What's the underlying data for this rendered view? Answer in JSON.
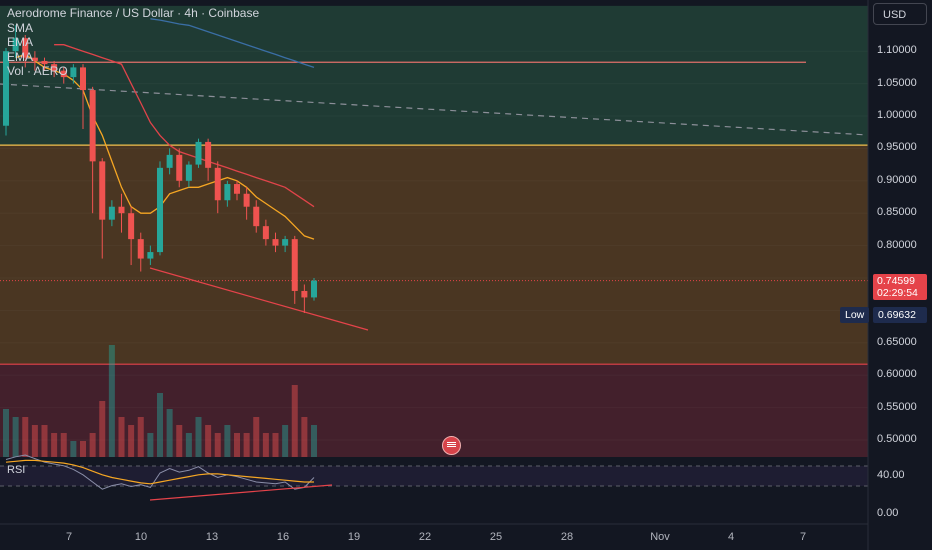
{
  "chart_title": "Aerodrome Finance / US Dollar · 4h · Coinbase",
  "indicators": [
    "SMA",
    "EMA",
    "EMA",
    "Vol · AERO"
  ],
  "rsi_label": "RSI",
  "currency_button": "USD",
  "last_price": "0.74599",
  "countdown": "02:29:54",
  "low_label": "Low",
  "low_value": "0.69632",
  "colors": {
    "up": "#26a69a",
    "down": "#ef5350",
    "supply_zone": "#1f3b34",
    "mid_zone": "#4a3622",
    "demand_zone": "#43202c",
    "sma": "#f5a623",
    "ema_red": "#e0444a",
    "ema_blue": "#3a6ea5",
    "rsi_line": "#8a8ea8",
    "rsi_ma": "#f5a623"
  },
  "chart_data": {
    "type": "candlestick",
    "y_ticks": [
      "1.10000",
      "1.05000",
      "1.00000",
      "0.95000",
      "0.90000",
      "0.85000",
      "0.80000",
      "0.65000",
      "0.60000",
      "0.55000",
      "0.50000"
    ],
    "x_ticks": [
      "7",
      "10",
      "13",
      "16",
      "19",
      "22",
      "25",
      "28",
      "Nov",
      "4",
      "7"
    ],
    "rsi_ticks": [
      "40.00",
      "0.00"
    ],
    "ylim": [
      0.46,
      1.17
    ],
    "horizontal_levels": [
      {
        "value": 1.083,
        "color": "#e0706a"
      },
      {
        "value": 0.955,
        "color": "#f2c14e"
      },
      {
        "value": 0.617,
        "color": "#e5434a"
      }
    ],
    "zones": [
      {
        "from": 0.955,
        "to": 1.17,
        "name": "supply"
      },
      {
        "from": 0.617,
        "to": 0.955,
        "name": "mid"
      },
      {
        "from": 0.46,
        "to": 0.617,
        "name": "demand"
      }
    ],
    "candles": [
      [
        0.985,
        1.1,
        1.105,
        0.97
      ],
      [
        1.1,
        1.12,
        1.14,
        1.09
      ],
      [
        1.12,
        1.09,
        1.125,
        1.075
      ],
      [
        1.09,
        1.085,
        1.1,
        1.07
      ],
      [
        1.085,
        1.08,
        1.09,
        1.07
      ],
      [
        1.08,
        1.07,
        1.085,
        1.06
      ],
      [
        1.07,
        1.06,
        1.075,
        1.05
      ],
      [
        1.06,
        1.075,
        1.08,
        1.05
      ],
      [
        1.075,
        1.04,
        1.08,
        0.98
      ],
      [
        1.04,
        0.93,
        1.045,
        0.85
      ],
      [
        0.93,
        0.84,
        0.935,
        0.78
      ],
      [
        0.84,
        0.86,
        0.87,
        0.83
      ],
      [
        0.86,
        0.85,
        0.88,
        0.82
      ],
      [
        0.85,
        0.81,
        0.86,
        0.77
      ],
      [
        0.81,
        0.78,
        0.82,
        0.76
      ],
      [
        0.78,
        0.79,
        0.8,
        0.77
      ],
      [
        0.79,
        0.92,
        0.93,
        0.785
      ],
      [
        0.92,
        0.94,
        0.95,
        0.91
      ],
      [
        0.94,
        0.9,
        0.95,
        0.89
      ],
      [
        0.9,
        0.925,
        0.93,
        0.89
      ],
      [
        0.925,
        0.96,
        0.965,
        0.92
      ],
      [
        0.96,
        0.92,
        0.965,
        0.9
      ],
      [
        0.92,
        0.87,
        0.93,
        0.85
      ],
      [
        0.87,
        0.895,
        0.9,
        0.86
      ],
      [
        0.895,
        0.88,
        0.9,
        0.87
      ],
      [
        0.88,
        0.86,
        0.89,
        0.84
      ],
      [
        0.86,
        0.83,
        0.87,
        0.82
      ],
      [
        0.83,
        0.81,
        0.84,
        0.8
      ],
      [
        0.81,
        0.8,
        0.82,
        0.79
      ],
      [
        0.8,
        0.81,
        0.815,
        0.79
      ],
      [
        0.81,
        0.73,
        0.815,
        0.71
      ],
      [
        0.73,
        0.72,
        0.74,
        0.696
      ],
      [
        0.72,
        0.746,
        0.75,
        0.715
      ]
    ],
    "volumes": [
      6,
      5,
      5,
      4,
      4,
      3,
      3,
      2,
      2,
      3,
      7,
      14,
      5,
      4,
      5,
      3,
      8,
      6,
      4,
      3,
      5,
      4,
      3,
      4,
      3,
      3,
      5,
      3,
      3,
      4,
      9,
      5,
      4
    ],
    "sma": [
      1.09,
      1.095,
      1.085,
      1.075,
      1.07,
      1.065,
      1.055,
      1.04,
      1.0,
      0.97,
      0.93,
      0.89,
      0.86,
      0.85,
      0.85,
      0.86,
      0.88,
      0.885,
      0.89,
      0.89,
      0.895,
      0.9,
      0.905,
      0.9,
      0.89,
      0.875,
      0.865,
      0.855,
      0.845,
      0.83,
      0.815,
      0.81
    ],
    "ema_red": [
      1.11,
      1.11,
      1.105,
      1.1,
      1.095,
      1.09,
      1.085,
      1.08,
      1.05,
      1.02,
      0.99,
      0.97,
      0.955,
      0.945,
      0.94,
      0.935,
      0.93,
      0.925,
      0.92,
      0.915,
      0.91,
      0.905,
      0.9,
      0.895,
      0.89,
      0.88,
      0.87,
      0.86
    ],
    "ema_blue": [
      1.15,
      1.148,
      1.145,
      1.142,
      1.14,
      1.135,
      1.13,
      1.125,
      1.12,
      1.115,
      1.11,
      1.105,
      1.1,
      1.095,
      1.09,
      1.085,
      1.08,
      1.075
    ],
    "rsi": [
      55,
      58,
      60,
      56,
      52,
      50,
      48,
      44,
      38,
      30,
      22,
      26,
      28,
      25,
      27,
      24,
      40,
      45,
      41,
      43,
      47,
      40,
      35,
      38,
      36,
      33,
      30,
      29,
      28,
      30,
      22,
      24,
      35
    ],
    "rsi_ma": [
      52,
      53,
      54,
      54,
      53,
      52,
      51,
      49,
      46,
      42,
      38,
      35,
      33,
      31,
      29,
      28,
      30,
      32,
      34,
      36,
      38,
      39,
      39,
      38,
      37,
      36,
      35,
      34,
      33,
      32,
      31,
      30,
      30
    ]
  }
}
